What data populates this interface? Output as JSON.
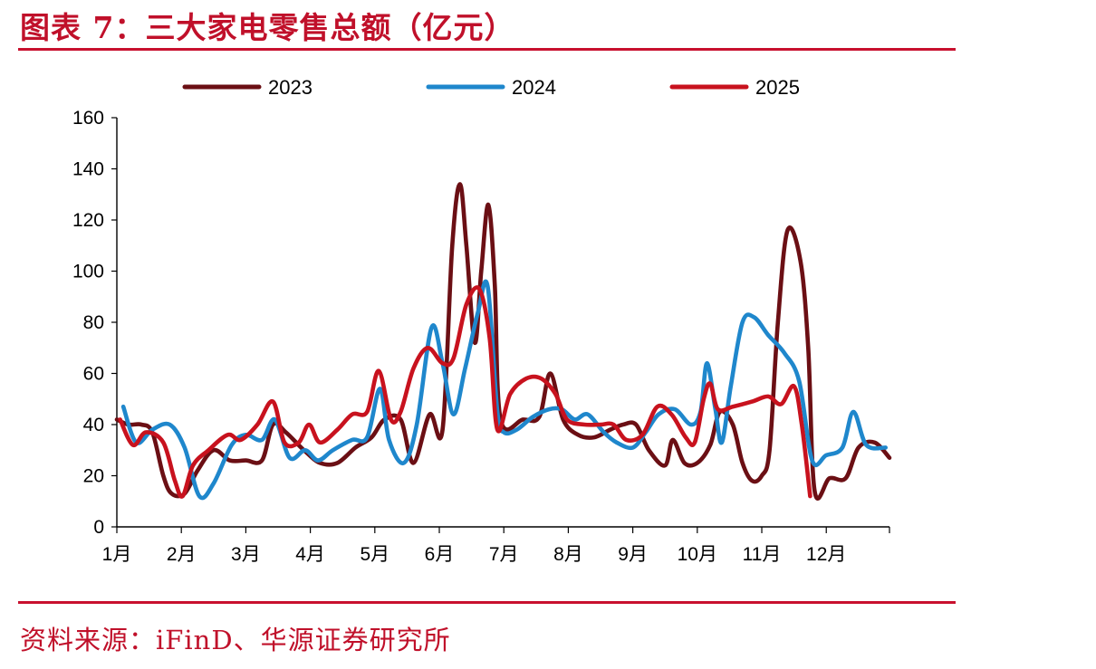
{
  "title": "图表 7：三大家电零售总额（亿元）",
  "source": "资料来源：iFinD、华源证券研究所",
  "colors": {
    "accent": "#C8102E",
    "s2023": "#6B0F14",
    "s2024": "#1F87CC",
    "s2025": "#C8121E"
  },
  "chart_data": {
    "type": "line",
    "title": "",
    "xlabel": "",
    "ylabel": "",
    "ylim": [
      0,
      160
    ],
    "yticks": [
      0,
      20,
      40,
      60,
      80,
      100,
      120,
      140,
      160
    ],
    "xlim": [
      1,
      12.98
    ],
    "months": [
      "1月",
      "2月",
      "3月",
      "4月",
      "5月",
      "6月",
      "7月",
      "8月",
      "9月",
      "10月",
      "11月",
      "12月"
    ],
    "legend_position": "top",
    "grid": false,
    "series": [
      {
        "name": "2023",
        "color": "#6B0F14",
        "points": [
          [
            1.0,
            42
          ],
          [
            1.18,
            40
          ],
          [
            1.38,
            40
          ],
          [
            1.55,
            37
          ],
          [
            1.72,
            20
          ],
          [
            1.85,
            13
          ],
          [
            2.05,
            13
          ],
          [
            2.25,
            22
          ],
          [
            2.5,
            30
          ],
          [
            2.75,
            26
          ],
          [
            3.0,
            26
          ],
          [
            3.25,
            26
          ],
          [
            3.42,
            40
          ],
          [
            3.62,
            37
          ],
          [
            3.9,
            30
          ],
          [
            4.15,
            25
          ],
          [
            4.42,
            25
          ],
          [
            4.7,
            31
          ],
          [
            4.95,
            35
          ],
          [
            5.15,
            42
          ],
          [
            5.4,
            42
          ],
          [
            5.6,
            25
          ],
          [
            5.85,
            44
          ],
          [
            6.05,
            38
          ],
          [
            6.2,
            110
          ],
          [
            6.32,
            134
          ],
          [
            6.42,
            110
          ],
          [
            6.55,
            72
          ],
          [
            6.65,
            100
          ],
          [
            6.76,
            126
          ],
          [
            6.86,
            95
          ],
          [
            6.95,
            42
          ],
          [
            7.3,
            42
          ],
          [
            7.55,
            43
          ],
          [
            7.72,
            60
          ],
          [
            7.92,
            42
          ],
          [
            8.15,
            36
          ],
          [
            8.4,
            35
          ],
          [
            8.65,
            38
          ],
          [
            8.85,
            40
          ],
          [
            9.05,
            40
          ],
          [
            9.25,
            30
          ],
          [
            9.5,
            24
          ],
          [
            9.62,
            34
          ],
          [
            9.8,
            25
          ],
          [
            10.0,
            25
          ],
          [
            10.2,
            32
          ],
          [
            10.35,
            45
          ],
          [
            10.55,
            40
          ],
          [
            10.7,
            25
          ],
          [
            10.85,
            18
          ],
          [
            11.0,
            20
          ],
          [
            11.12,
            30
          ],
          [
            11.25,
            80
          ],
          [
            11.4,
            116
          ],
          [
            11.6,
            104
          ],
          [
            11.72,
            70
          ],
          [
            11.82,
            14
          ],
          [
            12.05,
            19
          ],
          [
            12.3,
            19
          ],
          [
            12.5,
            31
          ],
          [
            12.75,
            33
          ],
          [
            12.98,
            27
          ]
        ]
      },
      {
        "name": "2024",
        "color": "#1F87CC",
        "points": [
          [
            1.1,
            47
          ],
          [
            1.3,
            33
          ],
          [
            1.55,
            38
          ],
          [
            1.82,
            40
          ],
          [
            2.05,
            31
          ],
          [
            2.28,
            12
          ],
          [
            2.5,
            17
          ],
          [
            2.78,
            32
          ],
          [
            3.0,
            36
          ],
          [
            3.25,
            34
          ],
          [
            3.45,
            42
          ],
          [
            3.68,
            27
          ],
          [
            3.92,
            30
          ],
          [
            4.12,
            26
          ],
          [
            4.35,
            30
          ],
          [
            4.65,
            34
          ],
          [
            4.88,
            35
          ],
          [
            5.08,
            54
          ],
          [
            5.22,
            34
          ],
          [
            5.45,
            25
          ],
          [
            5.65,
            40
          ],
          [
            5.88,
            78
          ],
          [
            6.05,
            64
          ],
          [
            6.22,
            44
          ],
          [
            6.4,
            62
          ],
          [
            6.6,
            84
          ],
          [
            6.75,
            94
          ],
          [
            6.9,
            45
          ],
          [
            7.0,
            37
          ],
          [
            7.2,
            38
          ],
          [
            7.45,
            43
          ],
          [
            7.7,
            46
          ],
          [
            7.9,
            46
          ],
          [
            8.1,
            42
          ],
          [
            8.3,
            44
          ],
          [
            8.55,
            37
          ],
          [
            8.75,
            33
          ],
          [
            9.0,
            31
          ],
          [
            9.2,
            37
          ],
          [
            9.4,
            44
          ],
          [
            9.65,
            46
          ],
          [
            9.9,
            40
          ],
          [
            10.05,
            45
          ],
          [
            10.15,
            64
          ],
          [
            10.28,
            46
          ],
          [
            10.38,
            33
          ],
          [
            10.52,
            55
          ],
          [
            10.7,
            80
          ],
          [
            10.88,
            82
          ],
          [
            11.1,
            75
          ],
          [
            11.35,
            68
          ],
          [
            11.58,
            57
          ],
          [
            11.78,
            26
          ],
          [
            12.0,
            28
          ],
          [
            12.25,
            31
          ],
          [
            12.42,
            45
          ],
          [
            12.62,
            32
          ],
          [
            12.92,
            31
          ]
        ]
      },
      {
        "name": "2025",
        "color": "#C8121E",
        "points": [
          [
            1.05,
            42
          ],
          [
            1.25,
            32
          ],
          [
            1.45,
            37
          ],
          [
            1.72,
            33
          ],
          [
            1.9,
            18
          ],
          [
            2.02,
            12
          ],
          [
            2.18,
            24
          ],
          [
            2.42,
            30
          ],
          [
            2.72,
            36
          ],
          [
            2.92,
            34
          ],
          [
            3.18,
            40
          ],
          [
            3.42,
            49
          ],
          [
            3.6,
            33
          ],
          [
            3.82,
            33
          ],
          [
            3.98,
            40
          ],
          [
            4.15,
            33
          ],
          [
            4.42,
            38
          ],
          [
            4.65,
            44
          ],
          [
            4.88,
            45
          ],
          [
            5.06,
            61
          ],
          [
            5.25,
            42
          ],
          [
            5.4,
            45
          ],
          [
            5.6,
            62
          ],
          [
            5.82,
            70
          ],
          [
            6.05,
            64
          ],
          [
            6.22,
            66
          ],
          [
            6.42,
            87
          ],
          [
            6.62,
            93
          ],
          [
            6.78,
            74
          ],
          [
            6.9,
            38
          ],
          [
            7.1,
            52
          ],
          [
            7.35,
            58
          ],
          [
            7.58,
            58
          ],
          [
            7.8,
            52
          ],
          [
            7.98,
            42
          ],
          [
            8.25,
            40
          ],
          [
            8.5,
            40
          ],
          [
            8.7,
            40
          ],
          [
            8.9,
            34
          ],
          [
            9.15,
            36
          ],
          [
            9.38,
            47
          ],
          [
            9.6,
            44
          ],
          [
            9.82,
            35
          ],
          [
            9.96,
            33
          ],
          [
            10.1,
            50
          ],
          [
            10.2,
            56
          ],
          [
            10.32,
            46
          ],
          [
            10.55,
            47
          ],
          [
            10.85,
            49
          ],
          [
            11.1,
            51
          ],
          [
            11.3,
            48
          ],
          [
            11.5,
            55
          ],
          [
            11.62,
            40
          ],
          [
            11.75,
            12
          ]
        ]
      }
    ]
  }
}
